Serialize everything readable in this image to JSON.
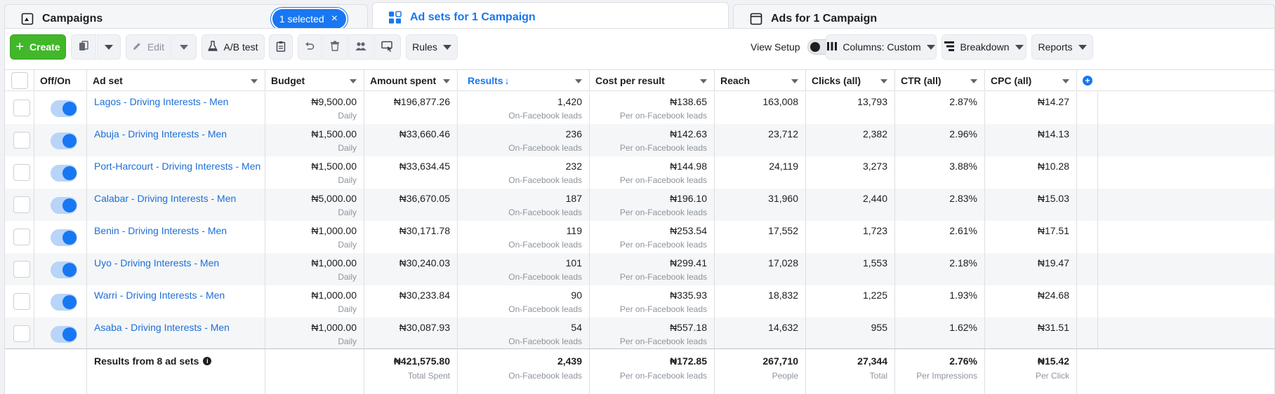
{
  "tabs": {
    "campaigns": "Campaigns",
    "selected_badge": "1 selected",
    "adsets": "Ad sets for 1 Campaign",
    "ads": "Ads for 1 Campaign"
  },
  "toolbar": {
    "create": "Create",
    "edit": "Edit",
    "ab_test": "A/B test",
    "rules": "Rules",
    "view_setup": "View Setup",
    "columns": "Columns: Custom",
    "breakdown": "Breakdown",
    "reports": "Reports"
  },
  "columns": {
    "off_on": "Off/On",
    "ad_set": "Ad set",
    "budget": "Budget",
    "amount_spent": "Amount spent",
    "results": "Results",
    "results_sort": "↓",
    "cost_per_result": "Cost per result",
    "reach": "Reach",
    "clicks": "Clicks (all)",
    "ctr": "CTR (all)",
    "cpc": "CPC (all)"
  },
  "rows": [
    {
      "name": "Lagos - Driving Interests - Men",
      "budget": "₦9,500.00",
      "budget_sub": "Daily",
      "spent": "₦196,877.26",
      "results": "1,420",
      "results_sub": "On-Facebook leads",
      "cpr": "₦138.65",
      "cpr_sub": "Per on-Facebook leads",
      "reach": "163,008",
      "clicks": "13,793",
      "ctr": "2.87%",
      "cpc": "₦14.27"
    },
    {
      "name": "Abuja - Driving Interests - Men",
      "budget": "₦1,500.00",
      "budget_sub": "Daily",
      "spent": "₦33,660.46",
      "results": "236",
      "results_sub": "On-Facebook leads",
      "cpr": "₦142.63",
      "cpr_sub": "Per on-Facebook leads",
      "reach": "23,712",
      "clicks": "2,382",
      "ctr": "2.96%",
      "cpc": "₦14.13"
    },
    {
      "name": "Port-Harcourt - Driving Interests - Men",
      "budget": "₦1,500.00",
      "budget_sub": "Daily",
      "spent": "₦33,634.45",
      "results": "232",
      "results_sub": "On-Facebook leads",
      "cpr": "₦144.98",
      "cpr_sub": "Per on-Facebook leads",
      "reach": "24,119",
      "clicks": "3,273",
      "ctr": "3.88%",
      "cpc": "₦10.28"
    },
    {
      "name": "Calabar - Driving Interests - Men",
      "budget": "₦5,000.00",
      "budget_sub": "Daily",
      "spent": "₦36,670.05",
      "results": "187",
      "results_sub": "On-Facebook leads",
      "cpr": "₦196.10",
      "cpr_sub": "Per on-Facebook leads",
      "reach": "31,960",
      "clicks": "2,440",
      "ctr": "2.83%",
      "cpc": "₦15.03"
    },
    {
      "name": "Benin - Driving Interests - Men",
      "budget": "₦1,000.00",
      "budget_sub": "Daily",
      "spent": "₦30,171.78",
      "results": "119",
      "results_sub": "On-Facebook leads",
      "cpr": "₦253.54",
      "cpr_sub": "Per on-Facebook leads",
      "reach": "17,552",
      "clicks": "1,723",
      "ctr": "2.61%",
      "cpc": "₦17.51"
    },
    {
      "name": "Uyo - Driving Interests - Men",
      "budget": "₦1,000.00",
      "budget_sub": "Daily",
      "spent": "₦30,240.03",
      "results": "101",
      "results_sub": "On-Facebook leads",
      "cpr": "₦299.41",
      "cpr_sub": "Per on-Facebook leads",
      "reach": "17,028",
      "clicks": "1,553",
      "ctr": "2.18%",
      "cpc": "₦19.47"
    },
    {
      "name": "Warri - Driving Interests - Men",
      "budget": "₦1,000.00",
      "budget_sub": "Daily",
      "spent": "₦30,233.84",
      "results": "90",
      "results_sub": "On-Facebook leads",
      "cpr": "₦335.93",
      "cpr_sub": "Per on-Facebook leads",
      "reach": "18,832",
      "clicks": "1,225",
      "ctr": "1.93%",
      "cpc": "₦24.68"
    },
    {
      "name": "Asaba - Driving Interests - Men",
      "budget": "₦1,000.00",
      "budget_sub": "Daily",
      "spent": "₦30,087.93",
      "results": "54",
      "results_sub": "On-Facebook leads",
      "cpr": "₦557.18",
      "cpr_sub": "Per on-Facebook leads",
      "reach": "14,632",
      "clicks": "955",
      "ctr": "1.62%",
      "cpc": "₦31.51"
    }
  ],
  "totals": {
    "label": "Results from 8 ad sets",
    "spent": "₦421,575.80",
    "spent_sub": "Total Spent",
    "results": "2,439",
    "results_sub": "On-Facebook leads",
    "cpr": "₦172.85",
    "cpr_sub": "Per on-Facebook leads",
    "reach": "267,710",
    "reach_sub": "People",
    "clicks": "27,344",
    "clicks_sub": "Total",
    "ctr": "2.76%",
    "ctr_sub": "Per Impressions",
    "cpc": "₦15.42",
    "cpc_sub": "Per Click"
  },
  "icons": {
    "info": "i",
    "plus": "+",
    "close": "×"
  },
  "colors": {
    "accent": "#1877f2",
    "create_green": "#42b72a",
    "link": "#1d6fd6"
  }
}
